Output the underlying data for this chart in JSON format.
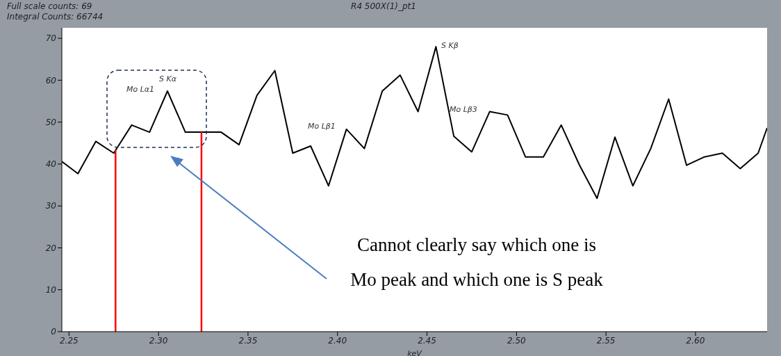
{
  "chart_data": {
    "type": "line",
    "title": "R4 500X(1)_pt1",
    "xlabel": "keV",
    "annotations": [
      "Full scale counts: 69",
      "Integral Counts: 66744",
      "Mo Lα1",
      "S Kα",
      "Mo Lβ1",
      "S Kβ",
      "Mo Lβ3",
      "Cannot clearly say which one is",
      "Mo peak and which one is S peak"
    ],
    "x": [
      2.246,
      2.255,
      2.265,
      2.275,
      2.285,
      2.295,
      2.305,
      2.315,
      2.325,
      2.335,
      2.345,
      2.355,
      2.365,
      2.375,
      2.385,
      2.395,
      2.405,
      2.415,
      2.425,
      2.435,
      2.445,
      2.455,
      2.465,
      2.475,
      2.485,
      2.495,
      2.505,
      2.515,
      2.525,
      2.535,
      2.545,
      2.555,
      2.565,
      2.575,
      2.585,
      2.595,
      2.605,
      2.615,
      2.625,
      2.635,
      2.64
    ],
    "series": [
      {
        "color": "#000000",
        "values": [
          40.6,
          37.7,
          45.4,
          42.6,
          49.3,
          47.6,
          57.4,
          47.6,
          47.6,
          47.6,
          44.6,
          56.4,
          62.3,
          42.6,
          44.3,
          34.8,
          48.3,
          43.7,
          57.4,
          61.2,
          52.5,
          68.0,
          46.6,
          42.9,
          52.5,
          51.7,
          41.7,
          41.7,
          49.3,
          39.9,
          31.8,
          46.4,
          34.8,
          43.7,
          55.5,
          39.7,
          41.7,
          42.6,
          38.9,
          42.6,
          48.6
        ]
      }
    ],
    "xlim": [
      2.246,
      2.64
    ],
    "xticks": [
      {
        "value": 2.25,
        "label": "2.25"
      },
      {
        "value": 2.3,
        "label": "2.30"
      },
      {
        "value": 2.35,
        "label": "2.35"
      },
      {
        "value": 2.4,
        "label": "2.40"
      },
      {
        "value": 2.45,
        "label": "2.45"
      },
      {
        "value": 2.5,
        "label": "2.50"
      },
      {
        "value": 2.55,
        "label": "2.55"
      },
      {
        "value": 2.6,
        "label": "2.60"
      }
    ],
    "ylim": [
      0,
      72.5
    ],
    "yticks": [
      0,
      10,
      20,
      30,
      40,
      50,
      60,
      70
    ],
    "ref_lines": [
      {
        "axis": "x",
        "value": 2.276,
        "color": "#ff0000"
      },
      {
        "axis": "x",
        "value": 2.324,
        "color": "#ff0000"
      }
    ],
    "marker": "none",
    "line_style": "solid",
    "grid": false,
    "legend": false
  }
}
